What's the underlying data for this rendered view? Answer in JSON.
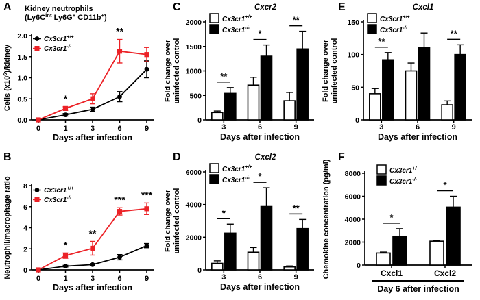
{
  "colors": {
    "wildtype_black": "#000000",
    "knockout_red": "#ec2227",
    "bar_white": "#ffffff"
  },
  "chart_data": [
    {
      "panel": "A",
      "type": "line",
      "title_lines": [
        "Kidney neutrophils",
        "(Ly6C^{int} Ly6G^{+} CD11b^{+})"
      ],
      "ylabel_lines": [
        "Cells (x10^{6})/kidney"
      ],
      "xlabel": "Days after infection",
      "x_categories": [
        "0",
        "1",
        "3",
        "6",
        "9"
      ],
      "ylim": [
        0,
        2
      ],
      "yticks": [
        0,
        0.5,
        1,
        1.5,
        2
      ],
      "ytick_labels": [
        "0.0",
        "0.5",
        "1.0",
        "1.5",
        "2.0"
      ],
      "series": [
        {
          "name": "Cx3cr1^{+/+}",
          "color": "#000000",
          "marker": "circle",
          "values": [
            0,
            0.12,
            0.25,
            0.55,
            1.2
          ],
          "errors": [
            0,
            0.03,
            0.05,
            0.12,
            0.2
          ]
        },
        {
          "name": "Cx3cr1^{-/-}",
          "color": "#ec2227",
          "marker": "square",
          "values": [
            0,
            0.27,
            0.5,
            1.63,
            1.55
          ],
          "errors": [
            0,
            0.04,
            0.12,
            0.28,
            0.17
          ]
        }
      ],
      "sig": [
        {
          "x": "1",
          "text": "*"
        },
        {
          "x": "6",
          "text": "**"
        }
      ]
    },
    {
      "panel": "B",
      "type": "line",
      "title_lines": [],
      "ylabel_lines": [
        "Neutrophil/macrophage ratio"
      ],
      "xlabel": "Days after infection",
      "x_categories": [
        "0",
        "1",
        "3",
        "6",
        "9"
      ],
      "ylim": [
        0,
        8
      ],
      "yticks": [
        0,
        2,
        4,
        6,
        8
      ],
      "ytick_labels": [
        "0",
        "2",
        "4",
        "6",
        "8"
      ],
      "series": [
        {
          "name": "Cx3cr1^{+/+}",
          "color": "#000000",
          "marker": "circle",
          "values": [
            0,
            0.35,
            0.5,
            1.2,
            2.3
          ],
          "errors": [
            0,
            0.08,
            0.1,
            0.25,
            0.2
          ]
        },
        {
          "name": "Cx3cr1^{-/-}",
          "color": "#ec2227",
          "marker": "square",
          "values": [
            0,
            1.35,
            2.05,
            5.55,
            5.8
          ],
          "errors": [
            0,
            0.25,
            0.65,
            0.35,
            0.55
          ]
        }
      ],
      "sig": [
        {
          "x": "1",
          "text": "*"
        },
        {
          "x": "3",
          "text": "**"
        },
        {
          "x": "6",
          "text": "***"
        },
        {
          "x": "9",
          "text": "***"
        }
      ]
    },
    {
      "panel": "C",
      "type": "bar",
      "title": "Cxcr2",
      "ylabel_lines": [
        "Fold change over",
        "uninfected control"
      ],
      "xlabel": "Days after infection",
      "categories": [
        "3",
        "6",
        "9"
      ],
      "ylim": [
        0,
        2000
      ],
      "yticks": [
        0,
        500,
        1000,
        1500,
        2000
      ],
      "ytick_labels": [
        "0",
        "500",
        "1000",
        "1500",
        "2000"
      ],
      "series": [
        {
          "name": "Cx3cr1^{+/+}",
          "fill": "#ffffff",
          "values": [
            150,
            710,
            390
          ],
          "errors": [
            30,
            160,
            170
          ]
        },
        {
          "name": "Cx3cr1^{-/-}",
          "fill": "#000000",
          "values": [
            540,
            1300,
            1450
          ],
          "errors": [
            120,
            230,
            360
          ]
        }
      ],
      "sig": [
        {
          "group": 0,
          "text": "**"
        },
        {
          "group": 1,
          "text": "*"
        },
        {
          "group": 2,
          "text": "**"
        }
      ]
    },
    {
      "panel": "D",
      "type": "bar",
      "title": "Cxcl2",
      "ylabel_lines": [
        "Fold change over",
        "uninfected control"
      ],
      "xlabel": "Days after infection",
      "categories": [
        "3",
        "6",
        "9"
      ],
      "ylim": [
        0,
        6000
      ],
      "yticks": [
        0,
        2000,
        4000,
        6000
      ],
      "ytick_labels": [
        "0",
        "2000",
        "4000",
        "6000"
      ],
      "series": [
        {
          "name": "Cx3cr1^{+/+}",
          "fill": "#ffffff",
          "values": [
            400,
            1080,
            180
          ],
          "errors": [
            150,
            290,
            60
          ]
        },
        {
          "name": "Cx3cr1^{-/-}",
          "fill": "#000000",
          "values": [
            2250,
            3880,
            2530
          ],
          "errors": [
            550,
            1150,
            560
          ]
        }
      ],
      "sig": [
        {
          "group": 0,
          "text": "*"
        },
        {
          "group": 1,
          "text": "*"
        },
        {
          "group": 2,
          "text": "**"
        }
      ]
    },
    {
      "panel": "E",
      "type": "bar",
      "title": "Cxcl1",
      "ylabel_lines": [
        "Fold change over",
        "uninfected control"
      ],
      "xlabel": "Days after infection",
      "categories": [
        "3",
        "6",
        "9"
      ],
      "ylim": [
        0,
        150
      ],
      "yticks": [
        0,
        50,
        100,
        150
      ],
      "ytick_labels": [
        "0",
        "50",
        "100",
        "150"
      ],
      "series": [
        {
          "name": "Cx3cr1^{+/+}",
          "fill": "#ffffff",
          "values": [
            40,
            75,
            23
          ],
          "errors": [
            8,
            12,
            6
          ]
        },
        {
          "name": "Cx3cr1^{-/-}",
          "fill": "#000000",
          "values": [
            92,
            111,
            100
          ],
          "errors": [
            11,
            22,
            15
          ]
        }
      ],
      "sig": [
        {
          "group": 0,
          "text": "**"
        },
        {
          "group": 2,
          "text": "**"
        }
      ]
    },
    {
      "panel": "F",
      "type": "bar",
      "title": "",
      "ylabel_lines": [
        "Chemokine concentration (pg/ml)"
      ],
      "xlabel": "",
      "group_caption": "Day 6 after infection",
      "categories": [
        "Cxcl1",
        "Cxcl2"
      ],
      "ylim": [
        0,
        8000
      ],
      "yticks": [
        0,
        2000,
        4000,
        6000,
        8000
      ],
      "ytick_labels": [
        "0",
        "2000",
        "4000",
        "6000",
        "8000"
      ],
      "series": [
        {
          "name": "Cx3cr1^{+/+}",
          "fill": "#ffffff",
          "values": [
            1050,
            2080
          ],
          "errors": [
            80,
            60
          ]
        },
        {
          "name": "Cx3cr1^{-/-}",
          "fill": "#000000",
          "values": [
            2520,
            5050
          ],
          "errors": [
            650,
            950
          ]
        }
      ],
      "sig": [
        {
          "group": 0,
          "text": "*"
        },
        {
          "group": 1,
          "text": "*"
        }
      ]
    }
  ]
}
